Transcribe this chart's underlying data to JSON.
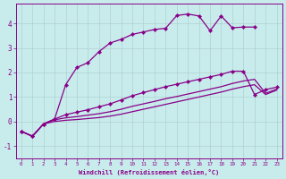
{
  "background_color": "#c8ecec",
  "line_color": "#880088",
  "grid_color": "#b0d0d0",
  "xlim": [
    -0.5,
    23.5
  ],
  "ylim": [
    -1.5,
    4.8
  ],
  "xticks": [
    0,
    1,
    2,
    3,
    4,
    5,
    6,
    7,
    8,
    9,
    10,
    11,
    12,
    13,
    14,
    15,
    16,
    17,
    18,
    19,
    20,
    21,
    22,
    23
  ],
  "yticks": [
    -1,
    0,
    1,
    2,
    3,
    4
  ],
  "xlabel": "Windchill (Refroidissement éolien,°C)",
  "series1_x": [
    0,
    1,
    2,
    3,
    4,
    5,
    6,
    7,
    8,
    9,
    10,
    11,
    12,
    13,
    14,
    15,
    16,
    17,
    18,
    19,
    20,
    21
  ],
  "series1_y": [
    -0.4,
    -0.6,
    -0.1,
    0.1,
    1.5,
    2.2,
    2.4,
    2.85,
    3.2,
    3.35,
    3.55,
    3.65,
    3.75,
    3.8,
    4.32,
    4.38,
    4.3,
    3.7,
    4.3,
    3.82,
    3.85,
    3.85
  ],
  "series2_x": [
    0,
    1,
    2,
    3,
    4,
    5,
    6,
    7,
    8,
    9,
    10,
    11,
    12,
    13,
    14,
    15,
    16,
    17,
    18,
    19,
    20,
    21,
    22,
    23
  ],
  "series2_y": [
    -0.4,
    -0.6,
    -0.1,
    0.1,
    0.28,
    0.38,
    0.48,
    0.6,
    0.72,
    0.88,
    1.05,
    1.18,
    1.3,
    1.42,
    1.52,
    1.62,
    1.72,
    1.82,
    1.92,
    2.05,
    2.05,
    1.1,
    1.3,
    1.4
  ],
  "series3_x": [
    0,
    1,
    2,
    3,
    4,
    5,
    6,
    7,
    8,
    9,
    10,
    11,
    12,
    13,
    14,
    15,
    16,
    17,
    18,
    19,
    20,
    21,
    22,
    23
  ],
  "series3_y": [
    -0.4,
    -0.6,
    -0.1,
    0.07,
    0.15,
    0.2,
    0.26,
    0.32,
    0.4,
    0.5,
    0.62,
    0.72,
    0.82,
    0.93,
    1.02,
    1.12,
    1.22,
    1.32,
    1.42,
    1.55,
    1.65,
    1.72,
    1.15,
    1.32
  ],
  "series4_x": [
    0,
    1,
    2,
    3,
    4,
    5,
    6,
    7,
    8,
    9,
    10,
    11,
    12,
    13,
    14,
    15,
    16,
    17,
    18,
    19,
    20,
    21,
    22,
    23
  ],
  "series4_y": [
    -0.4,
    -0.6,
    -0.1,
    0.0,
    0.05,
    0.08,
    0.12,
    0.16,
    0.22,
    0.3,
    0.4,
    0.5,
    0.6,
    0.7,
    0.8,
    0.9,
    1.0,
    1.1,
    1.2,
    1.32,
    1.42,
    1.5,
    1.1,
    1.28
  ]
}
